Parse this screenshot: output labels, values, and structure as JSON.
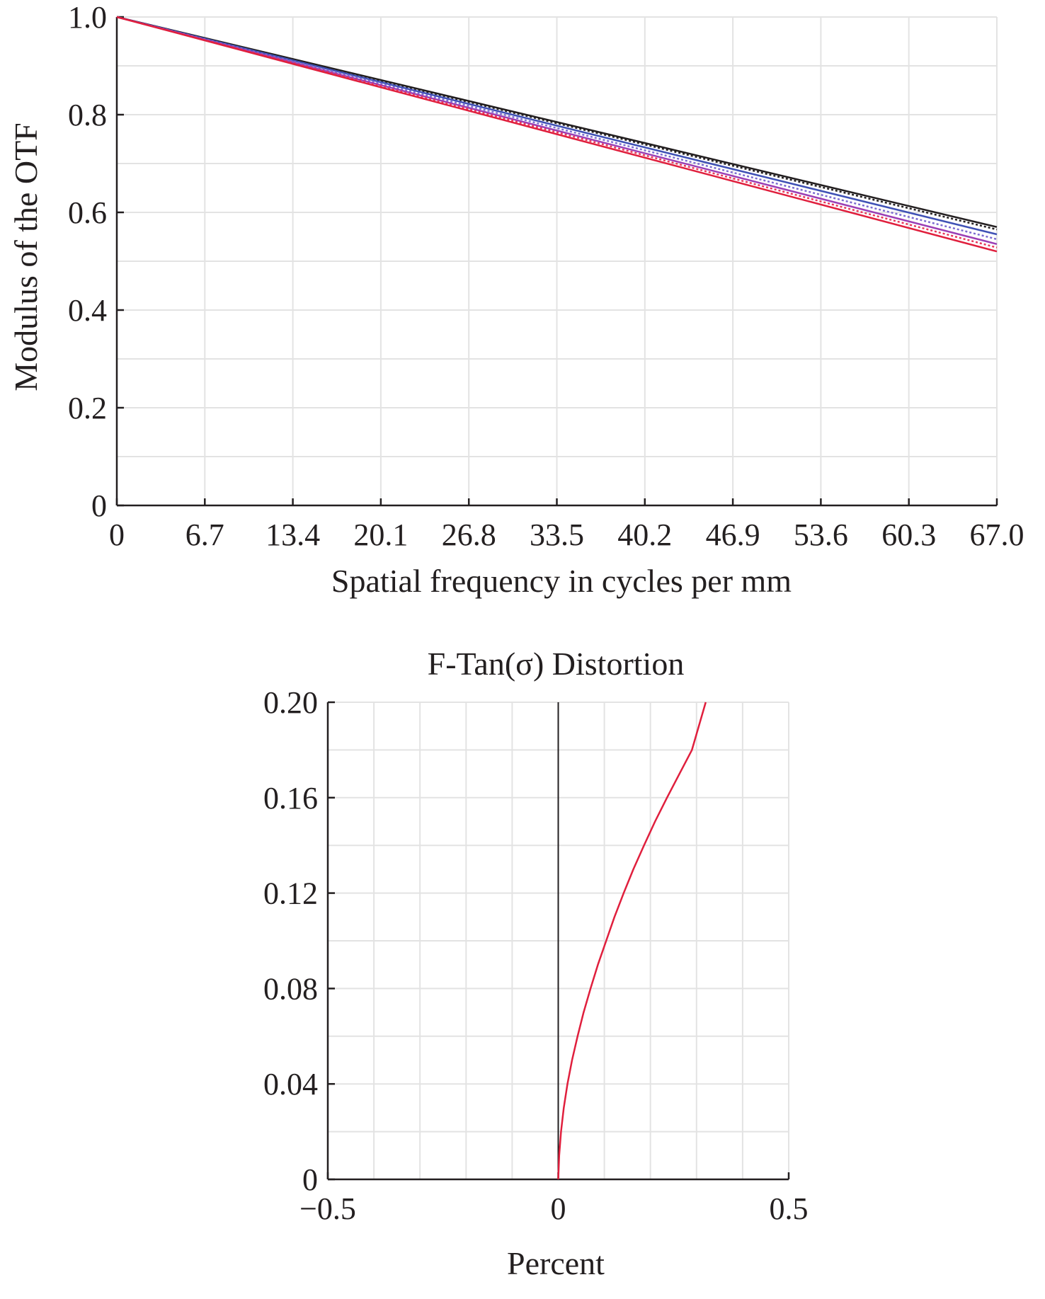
{
  "chart_data": [
    {
      "type": "line",
      "title": "",
      "xlabel": "Spatial frequency in cycles per mm",
      "ylabel": "Modulus of the OTF",
      "xlim": [
        0,
        67.0
      ],
      "ylim": [
        0,
        1.0
      ],
      "x_ticks": [
        "0",
        "6.7",
        "13.4",
        "20.1",
        "26.8",
        "33.5",
        "40.2",
        "46.9",
        "53.6",
        "60.3",
        "67.0"
      ],
      "y_ticks": [
        "0",
        "0.2",
        "0.4",
        "0.6",
        "0.8",
        "1.0"
      ],
      "grid": true,
      "series": [
        {
          "color": "#231f20",
          "dash": "solid",
          "x": [
            0,
            67.0
          ],
          "y": [
            1.0,
            0.57
          ]
        },
        {
          "color": "#231f20",
          "dash": "dotted",
          "x": [
            0,
            67.0
          ],
          "y": [
            1.0,
            0.565
          ]
        },
        {
          "color": "#3f51b5",
          "dash": "solid",
          "x": [
            0,
            67.0
          ],
          "y": [
            1.0,
            0.555
          ]
        },
        {
          "color": "#7b6bd0",
          "dash": "dotted",
          "x": [
            0,
            67.0
          ],
          "y": [
            1.0,
            0.545
          ]
        },
        {
          "color": "#9b3fb5",
          "dash": "solid",
          "x": [
            0,
            67.0
          ],
          "y": [
            1.0,
            0.535
          ]
        },
        {
          "color": "#e8365a",
          "dash": "dotted",
          "x": [
            0,
            67.0
          ],
          "y": [
            1.0,
            0.528
          ]
        },
        {
          "color": "#e01f3d",
          "dash": "solid",
          "x": [
            0,
            67.0
          ],
          "y": [
            1.0,
            0.52
          ]
        }
      ]
    },
    {
      "type": "line",
      "title": "F-Tan(σ) Distortion",
      "xlabel": "Percent",
      "ylabel": "",
      "xlim": [
        -0.5,
        0.5
      ],
      "ylim": [
        0,
        0.2
      ],
      "x_ticks": [
        "−0.5",
        "0",
        "0.5"
      ],
      "y_ticks": [
        "0",
        "0.04",
        "0.08",
        "0.12",
        "0.16",
        "0.20"
      ],
      "grid": true,
      "series": [
        {
          "color": "#e01f3d",
          "x": [
            0,
            0.002,
            0.006,
            0.012,
            0.02,
            0.03,
            0.042,
            0.055,
            0.07,
            0.086,
            0.104,
            0.122,
            0.142,
            0.163,
            0.186,
            0.21,
            0.236,
            0.263,
            0.29,
            0.32
          ],
          "y": [
            0,
            0.01,
            0.02,
            0.03,
            0.04,
            0.05,
            0.06,
            0.07,
            0.08,
            0.09,
            0.1,
            0.11,
            0.12,
            0.13,
            0.14,
            0.15,
            0.16,
            0.17,
            0.18,
            0.2
          ]
        }
      ]
    }
  ]
}
